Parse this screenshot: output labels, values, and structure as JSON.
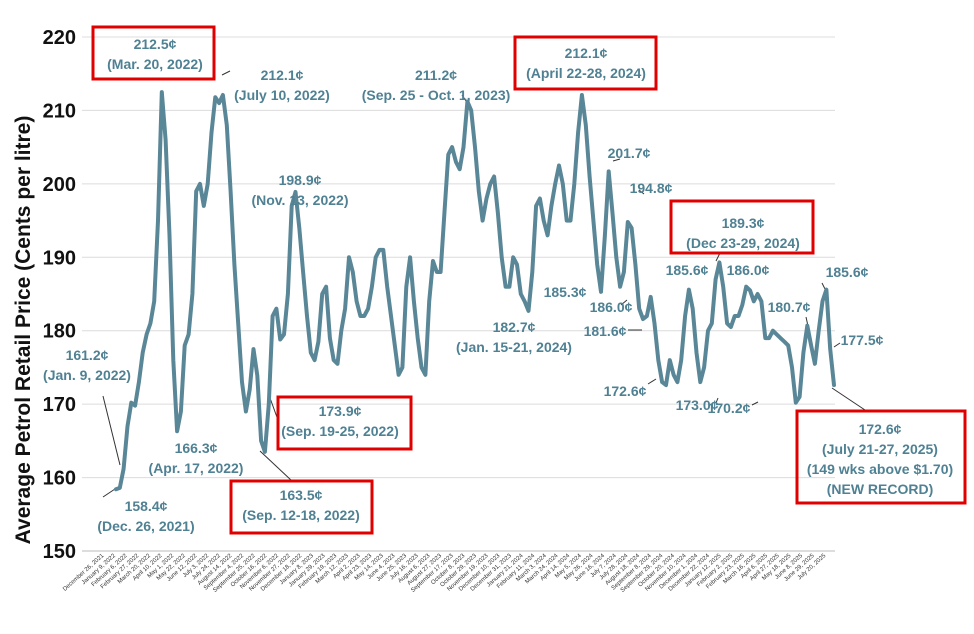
{
  "chart_data": {
    "type": "line",
    "title": "",
    "xlabel": "",
    "ylabel": "Average Petrol Retail Price (Cents per litre)",
    "ylim": [
      150,
      220
    ],
    "yticks": [
      150,
      160,
      170,
      180,
      190,
      200,
      210,
      220
    ],
    "grid": true,
    "x_tick_labels": [
      "December 26, 2021",
      "January 9, 2022",
      "February 6, 2022",
      "February 27, 2022",
      "March 20, 2022",
      "April 10, 2022",
      "May 1, 2022",
      "May 22, 2022",
      "June 12, 2022",
      "July 3, 2022",
      "July 24, 2022",
      "August 14, 2022",
      "September 4, 2022",
      "September 25, 2022",
      "October 16, 2022",
      "November 6, 2022",
      "November 27, 2022",
      "December 18, 2022",
      "January 8, 2023",
      "January 29, 2023",
      "February 19, 2023",
      "March 12, 2023",
      "April 2, 2023",
      "April 23, 2023",
      "May 14, 2023",
      "June 4, 2023",
      "June 25, 2023",
      "July 16, 2023",
      "August 6, 2023",
      "August 27, 2023",
      "September 17, 2023",
      "October 8, 2023",
      "October 29, 2023",
      "November 19, 2023",
      "December 10, 2023",
      "December 31, 2023",
      "January 21, 2024",
      "February 11, 2024",
      "March 3, 2024",
      "March 24, 2024",
      "April 14, 2024",
      "May 5, 2024",
      "May 26, 2024",
      "June 16, 2024",
      "July 7, 2024",
      "July 28, 2024",
      "August 18, 2024",
      "September 8, 2024",
      "September 29, 2024",
      "October 20, 2024",
      "November 10, 2024",
      "December 1, 2024",
      "December 22, 2024",
      "January 12, 2025",
      "February 2, 2025",
      "February 23, 2025",
      "March 16, 2025",
      "April 6, 2025",
      "April 27, 2025",
      "May 18, 2025",
      "June 8, 2025",
      "June 29, 2025",
      "July 20, 2025"
    ],
    "series": [
      {
        "name": "",
        "color": "#5a8797",
        "values": [
          158.4,
          158.6,
          161.2,
          167.0,
          170.2,
          169.8,
          173.0,
          177.0,
          179.5,
          181.0,
          184.0,
          195.0,
          212.5,
          206.0,
          193.0,
          176.0,
          166.3,
          169.0,
          178.0,
          179.5,
          185.0,
          199.0,
          200.0,
          197.0,
          200.0,
          207.0,
          211.8,
          211.0,
          212.1,
          208.0,
          199.0,
          189.0,
          181.0,
          173.0,
          169.0,
          172.0,
          177.5,
          173.9,
          165.0,
          163.5,
          170.0,
          182.0,
          183.0,
          178.8,
          179.5,
          185.0,
          197.0,
          198.9,
          194.0,
          188.0,
          182.0,
          177.0,
          176.0,
          178.5,
          185.0,
          186.0,
          179.0,
          176.0,
          175.5,
          180.0,
          183.0,
          190.0,
          188.0,
          184.0,
          182.0,
          182.0,
          183.0,
          186.0,
          190.0,
          191.0,
          191.0,
          186.0,
          182.0,
          178.0,
          174.0,
          175.0,
          186.0,
          190.0,
          184.0,
          179.0,
          175.0,
          174.0,
          184.0,
          189.5,
          188.0,
          188.0,
          196.0,
          204.0,
          205.0,
          203.0,
          202.0,
          205.0,
          211.2,
          210.0,
          205.0,
          199.0,
          195.0,
          198.0,
          200.0,
          201.0,
          196.0,
          190.0,
          186.0,
          186.0,
          190.0,
          189.0,
          185.0,
          184.0,
          182.7,
          188.0,
          197.0,
          198.0,
          195.0,
          193.0,
          197.0,
          200.0,
          202.5,
          200.0,
          195.0,
          195.0,
          200.0,
          207.0,
          212.1,
          208.0,
          201.0,
          195.0,
          189.0,
          185.3,
          193.0,
          201.7,
          196.0,
          190.0,
          186.0,
          188.0,
          194.8,
          194.0,
          189.0,
          183.0,
          181.6,
          182.0,
          184.6,
          181.0,
          176.0,
          173.0,
          172.6,
          176.0,
          174.0,
          173.0,
          176.0,
          182.0,
          185.6,
          183.0,
          177.0,
          173.0,
          175.0,
          180.0,
          181.0,
          187.0,
          189.3,
          186.0,
          181.0,
          180.5,
          182.0,
          182.0,
          183.5,
          186.0,
          185.5,
          184.0,
          185.0,
          184.0,
          179.0,
          179.0,
          180.0,
          179.5,
          179.0,
          178.5,
          178.0,
          175.0,
          170.2,
          171.0,
          177.0,
          180.7,
          178.0,
          175.5,
          180.0,
          184.0,
          185.6,
          177.5,
          172.6
        ]
      }
    ],
    "annotations": [
      {
        "lines": [
          "161.2¢",
          "(Jan. 9, 2022)"
        ],
        "highlighted": false
      },
      {
        "lines": [
          "158.4¢",
          "(Dec. 26, 2021)"
        ],
        "highlighted": false
      },
      {
        "lines": [
          "166.3¢",
          "(Apr. 17, 2022)"
        ],
        "highlighted": false
      },
      {
        "lines": [
          "212.5¢",
          "(Mar. 20, 2022)"
        ],
        "highlighted": true
      },
      {
        "lines": [
          "212.1¢",
          "(July 10, 2022)"
        ],
        "highlighted": false
      },
      {
        "lines": [
          "198.9¢",
          "(Nov. 13, 2022)"
        ],
        "highlighted": false
      },
      {
        "lines": [
          "173.9¢",
          "(Sep. 19-25, 2022)"
        ],
        "highlighted": true
      },
      {
        "lines": [
          "163.5¢",
          "(Sep. 12-18, 2022)"
        ],
        "highlighted": true
      },
      {
        "lines": [
          "211.2¢",
          "(Sep. 25 - Oct. 1, 2023)"
        ],
        "highlighted": false
      },
      {
        "lines": [
          "212.1¢",
          "(April 22-28, 2024)"
        ],
        "highlighted": true
      },
      {
        "lines": [
          "182.7¢",
          "(Jan. 15-21, 2024)"
        ],
        "highlighted": false
      },
      {
        "lines": [
          "185.3¢"
        ],
        "highlighted": false
      },
      {
        "lines": [
          "201.7¢"
        ],
        "highlighted": false
      },
      {
        "lines": [
          "186.0¢"
        ],
        "highlighted": false
      },
      {
        "lines": [
          "194.8¢"
        ],
        "highlighted": false
      },
      {
        "lines": [
          "181.6¢"
        ],
        "highlighted": false
      },
      {
        "lines": [
          "172.6¢"
        ],
        "highlighted": false
      },
      {
        "lines": [
          "185.6¢"
        ],
        "highlighted": false
      },
      {
        "lines": [
          "173.0¢"
        ],
        "highlighted": false
      },
      {
        "lines": [
          "189.3¢",
          "(Dec 23-29, 2024)"
        ],
        "highlighted": true
      },
      {
        "lines": [
          "186.0¢"
        ],
        "highlighted": false
      },
      {
        "lines": [
          "180.7¢"
        ],
        "highlighted": false
      },
      {
        "lines": [
          "170.2¢"
        ],
        "highlighted": false
      },
      {
        "lines": [
          "185.6¢"
        ],
        "highlighted": false
      },
      {
        "lines": [
          "177.5¢"
        ],
        "highlighted": false
      },
      {
        "lines": [
          "172.6¢",
          "(July 21-27, 2025)",
          "(149 wks above $1.70)",
          "(NEW RECORD)"
        ],
        "highlighted": true
      }
    ]
  }
}
